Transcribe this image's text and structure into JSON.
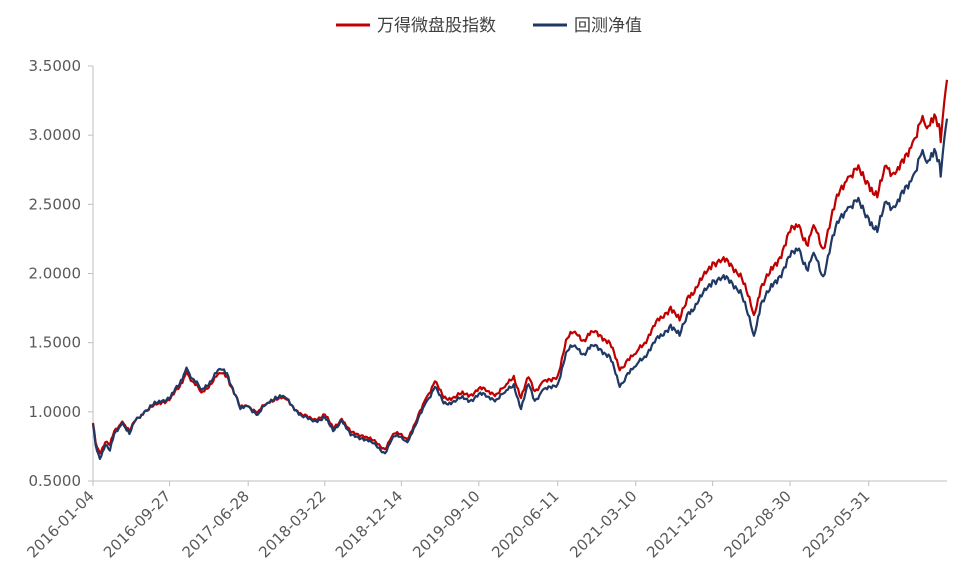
{
  "chart_data": {
    "type": "line",
    "title": "",
    "xlabel": "",
    "ylabel": "",
    "ylim": [
      0.5,
      3.5
    ],
    "y_ticks": [
      "0.5000",
      "1.0000",
      "1.5000",
      "2.0000",
      "2.5000",
      "3.0000",
      "3.5000"
    ],
    "x_ticks": [
      "2016-01-04",
      "2016-09-27",
      "2017-06-28",
      "2018-03-22",
      "2018-12-14",
      "2019-09-10",
      "2020-06-11",
      "2021-03-10",
      "2021-12-03",
      "2022-08-30",
      "2023-05-31"
    ],
    "x_range": [
      "2016-01-04",
      "2024-02-28"
    ],
    "grid": false,
    "legend_position": "top-center",
    "series": [
      {
        "name": "万得微盘股指数",
        "color": "#c00000",
        "points": [
          [
            "2016-01-04",
            0.92
          ],
          [
            "2016-01-13",
            0.78
          ],
          [
            "2016-01-28",
            0.7
          ],
          [
            "2016-02-16",
            0.78
          ],
          [
            "2016-03-03",
            0.76
          ],
          [
            "2016-03-18",
            0.86
          ],
          [
            "2016-04-15",
            0.93
          ],
          [
            "2016-05-10",
            0.86
          ],
          [
            "2016-06-01",
            0.94
          ],
          [
            "2016-07-01",
            1.0
          ],
          [
            "2016-08-01",
            1.04
          ],
          [
            "2016-09-01",
            1.07
          ],
          [
            "2016-10-01",
            1.1
          ],
          [
            "2016-11-01",
            1.18
          ],
          [
            "2016-11-25",
            1.29
          ],
          [
            "2016-12-15",
            1.22
          ],
          [
            "2017-01-16",
            1.14
          ],
          [
            "2017-02-15",
            1.2
          ],
          [
            "2017-03-20",
            1.28
          ],
          [
            "2017-04-15",
            1.26
          ],
          [
            "2017-05-15",
            1.12
          ],
          [
            "2017-06-01",
            1.03
          ],
          [
            "2017-06-28",
            1.04
          ],
          [
            "2017-08-01",
            1.0
          ],
          [
            "2017-09-01",
            1.06
          ],
          [
            "2017-10-01",
            1.1
          ],
          [
            "2017-11-01",
            1.1
          ],
          [
            "2017-12-01",
            1.04
          ],
          [
            "2018-01-01",
            0.98
          ],
          [
            "2018-02-09",
            0.94
          ],
          [
            "2018-03-22",
            0.98
          ],
          [
            "2018-04-20",
            0.88
          ],
          [
            "2018-05-20",
            0.95
          ],
          [
            "2018-06-20",
            0.85
          ],
          [
            "2018-08-01",
            0.83
          ],
          [
            "2018-09-01",
            0.8
          ],
          [
            "2018-10-18",
            0.73
          ],
          [
            "2018-11-15",
            0.84
          ],
          [
            "2018-12-14",
            0.84
          ],
          [
            "2019-01-04",
            0.8
          ],
          [
            "2019-02-01",
            0.92
          ],
          [
            "2019-03-10",
            1.1
          ],
          [
            "2019-04-10",
            1.22
          ],
          [
            "2019-05-10",
            1.1
          ],
          [
            "2019-06-10",
            1.1
          ],
          [
            "2019-07-10",
            1.13
          ],
          [
            "2019-08-10",
            1.12
          ],
          [
            "2019-09-10",
            1.17
          ],
          [
            "2019-10-10",
            1.15
          ],
          [
            "2019-11-10",
            1.13
          ],
          [
            "2019-12-10",
            1.18
          ],
          [
            "2020-01-10",
            1.26
          ],
          [
            "2020-02-04",
            1.1
          ],
          [
            "2020-03-01",
            1.25
          ],
          [
            "2020-03-23",
            1.15
          ],
          [
            "2020-04-20",
            1.22
          ],
          [
            "2020-05-20",
            1.22
          ],
          [
            "2020-06-11",
            1.26
          ],
          [
            "2020-07-10",
            1.52
          ],
          [
            "2020-08-10",
            1.58
          ],
          [
            "2020-09-10",
            1.52
          ],
          [
            "2020-10-10",
            1.58
          ],
          [
            "2020-11-10",
            1.55
          ],
          [
            "2020-12-10",
            1.5
          ],
          [
            "2021-01-13",
            1.3
          ],
          [
            "2021-02-10",
            1.38
          ],
          [
            "2021-03-10",
            1.42
          ],
          [
            "2021-04-10",
            1.5
          ],
          [
            "2021-05-10",
            1.62
          ],
          [
            "2021-06-10",
            1.68
          ],
          [
            "2021-07-10",
            1.76
          ],
          [
            "2021-08-10",
            1.66
          ],
          [
            "2021-09-10",
            1.84
          ],
          [
            "2021-10-10",
            1.9
          ],
          [
            "2021-11-10",
            2.0
          ],
          [
            "2021-12-03",
            2.08
          ],
          [
            "2022-01-05",
            2.1
          ],
          [
            "2022-02-10",
            2.05
          ],
          [
            "2022-03-10",
            2.0
          ],
          [
            "2022-04-26",
            1.7
          ],
          [
            "2022-05-20",
            1.9
          ],
          [
            "2022-06-20",
            2.0
          ],
          [
            "2022-07-20",
            2.1
          ],
          [
            "2022-08-30",
            2.3
          ],
          [
            "2022-09-30",
            2.35
          ],
          [
            "2022-10-31",
            2.2
          ],
          [
            "2022-11-20",
            2.35
          ],
          [
            "2022-12-23",
            2.18
          ],
          [
            "2023-01-20",
            2.4
          ],
          [
            "2023-02-20",
            2.6
          ],
          [
            "2023-03-20",
            2.7
          ],
          [
            "2023-04-20",
            2.75
          ],
          [
            "2023-05-31",
            2.65
          ],
          [
            "2023-06-30",
            2.55
          ],
          [
            "2023-07-31",
            2.78
          ],
          [
            "2023-08-31",
            2.72
          ],
          [
            "2023-09-30",
            2.8
          ],
          [
            "2023-10-31",
            2.95
          ],
          [
            "2023-11-30",
            3.1
          ],
          [
            "2023-12-20",
            3.05
          ],
          [
            "2024-01-15",
            3.15
          ],
          [
            "2024-01-31",
            3.08
          ],
          [
            "2024-02-06",
            2.95
          ],
          [
            "2024-02-19",
            3.25
          ],
          [
            "2024-02-28",
            3.4
          ]
        ]
      },
      {
        "name": "回测净值",
        "color": "#1f3864",
        "points": [
          [
            "2016-01-04",
            0.91
          ],
          [
            "2016-01-13",
            0.76
          ],
          [
            "2016-01-28",
            0.66
          ],
          [
            "2016-02-16",
            0.76
          ],
          [
            "2016-03-03",
            0.72
          ],
          [
            "2016-03-18",
            0.84
          ],
          [
            "2016-04-15",
            0.92
          ],
          [
            "2016-05-10",
            0.84
          ],
          [
            "2016-06-01",
            0.94
          ],
          [
            "2016-07-01",
            1.0
          ],
          [
            "2016-08-01",
            1.05
          ],
          [
            "2016-09-01",
            1.08
          ],
          [
            "2016-10-01",
            1.11
          ],
          [
            "2016-11-01",
            1.2
          ],
          [
            "2016-11-25",
            1.32
          ],
          [
            "2016-12-15",
            1.24
          ],
          [
            "2017-01-16",
            1.16
          ],
          [
            "2017-02-15",
            1.22
          ],
          [
            "2017-03-20",
            1.31
          ],
          [
            "2017-04-15",
            1.28
          ],
          [
            "2017-05-15",
            1.12
          ],
          [
            "2017-06-01",
            1.02
          ],
          [
            "2017-06-28",
            1.04
          ],
          [
            "2017-08-01",
            0.98
          ],
          [
            "2017-09-01",
            1.06
          ],
          [
            "2017-10-01",
            1.11
          ],
          [
            "2017-11-01",
            1.11
          ],
          [
            "2017-12-01",
            1.04
          ],
          [
            "2018-01-01",
            0.97
          ],
          [
            "2018-02-09",
            0.93
          ],
          [
            "2018-03-22",
            0.96
          ],
          [
            "2018-04-20",
            0.86
          ],
          [
            "2018-05-20",
            0.94
          ],
          [
            "2018-06-20",
            0.83
          ],
          [
            "2018-08-01",
            0.81
          ],
          [
            "2018-09-01",
            0.78
          ],
          [
            "2018-10-18",
            0.7
          ],
          [
            "2018-11-15",
            0.82
          ],
          [
            "2018-12-14",
            0.82
          ],
          [
            "2019-01-04",
            0.78
          ],
          [
            "2019-02-01",
            0.9
          ],
          [
            "2019-03-10",
            1.07
          ],
          [
            "2019-04-10",
            1.18
          ],
          [
            "2019-05-10",
            1.06
          ],
          [
            "2019-06-10",
            1.07
          ],
          [
            "2019-07-10",
            1.1
          ],
          [
            "2019-08-10",
            1.08
          ],
          [
            "2019-09-10",
            1.13
          ],
          [
            "2019-10-10",
            1.11
          ],
          [
            "2019-11-10",
            1.09
          ],
          [
            "2019-12-10",
            1.14
          ],
          [
            "2020-01-10",
            1.2
          ],
          [
            "2020-02-04",
            1.02
          ],
          [
            "2020-03-01",
            1.2
          ],
          [
            "2020-03-23",
            1.08
          ],
          [
            "2020-04-20",
            1.16
          ],
          [
            "2020-05-20",
            1.17
          ],
          [
            "2020-06-11",
            1.2
          ],
          [
            "2020-07-10",
            1.43
          ],
          [
            "2020-08-10",
            1.48
          ],
          [
            "2020-09-10",
            1.42
          ],
          [
            "2020-10-10",
            1.48
          ],
          [
            "2020-11-10",
            1.45
          ],
          [
            "2020-12-10",
            1.4
          ],
          [
            "2021-01-13",
            1.18
          ],
          [
            "2021-02-10",
            1.28
          ],
          [
            "2021-03-10",
            1.33
          ],
          [
            "2021-04-10",
            1.4
          ],
          [
            "2021-05-10",
            1.5
          ],
          [
            "2021-06-10",
            1.55
          ],
          [
            "2021-07-10",
            1.63
          ],
          [
            "2021-08-10",
            1.55
          ],
          [
            "2021-09-10",
            1.72
          ],
          [
            "2021-10-10",
            1.78
          ],
          [
            "2021-11-10",
            1.88
          ],
          [
            "2021-12-03",
            1.95
          ],
          [
            "2022-01-05",
            1.97
          ],
          [
            "2022-02-10",
            1.93
          ],
          [
            "2022-03-10",
            1.88
          ],
          [
            "2022-04-26",
            1.55
          ],
          [
            "2022-05-20",
            1.78
          ],
          [
            "2022-06-20",
            1.88
          ],
          [
            "2022-07-20",
            1.97
          ],
          [
            "2022-08-30",
            2.12
          ],
          [
            "2022-09-30",
            2.18
          ],
          [
            "2022-10-31",
            2.02
          ],
          [
            "2022-11-20",
            2.15
          ],
          [
            "2022-12-23",
            1.98
          ],
          [
            "2023-01-20",
            2.22
          ],
          [
            "2023-02-20",
            2.4
          ],
          [
            "2023-03-20",
            2.48
          ],
          [
            "2023-04-20",
            2.52
          ],
          [
            "2023-05-31",
            2.4
          ],
          [
            "2023-06-30",
            2.3
          ],
          [
            "2023-07-31",
            2.52
          ],
          [
            "2023-08-31",
            2.48
          ],
          [
            "2023-09-30",
            2.58
          ],
          [
            "2023-10-31",
            2.7
          ],
          [
            "2023-11-30",
            2.86
          ],
          [
            "2023-12-20",
            2.8
          ],
          [
            "2024-01-15",
            2.9
          ],
          [
            "2024-01-31",
            2.82
          ],
          [
            "2024-02-06",
            2.7
          ],
          [
            "2024-02-19",
            2.98
          ],
          [
            "2024-02-28",
            3.12
          ]
        ]
      }
    ]
  }
}
